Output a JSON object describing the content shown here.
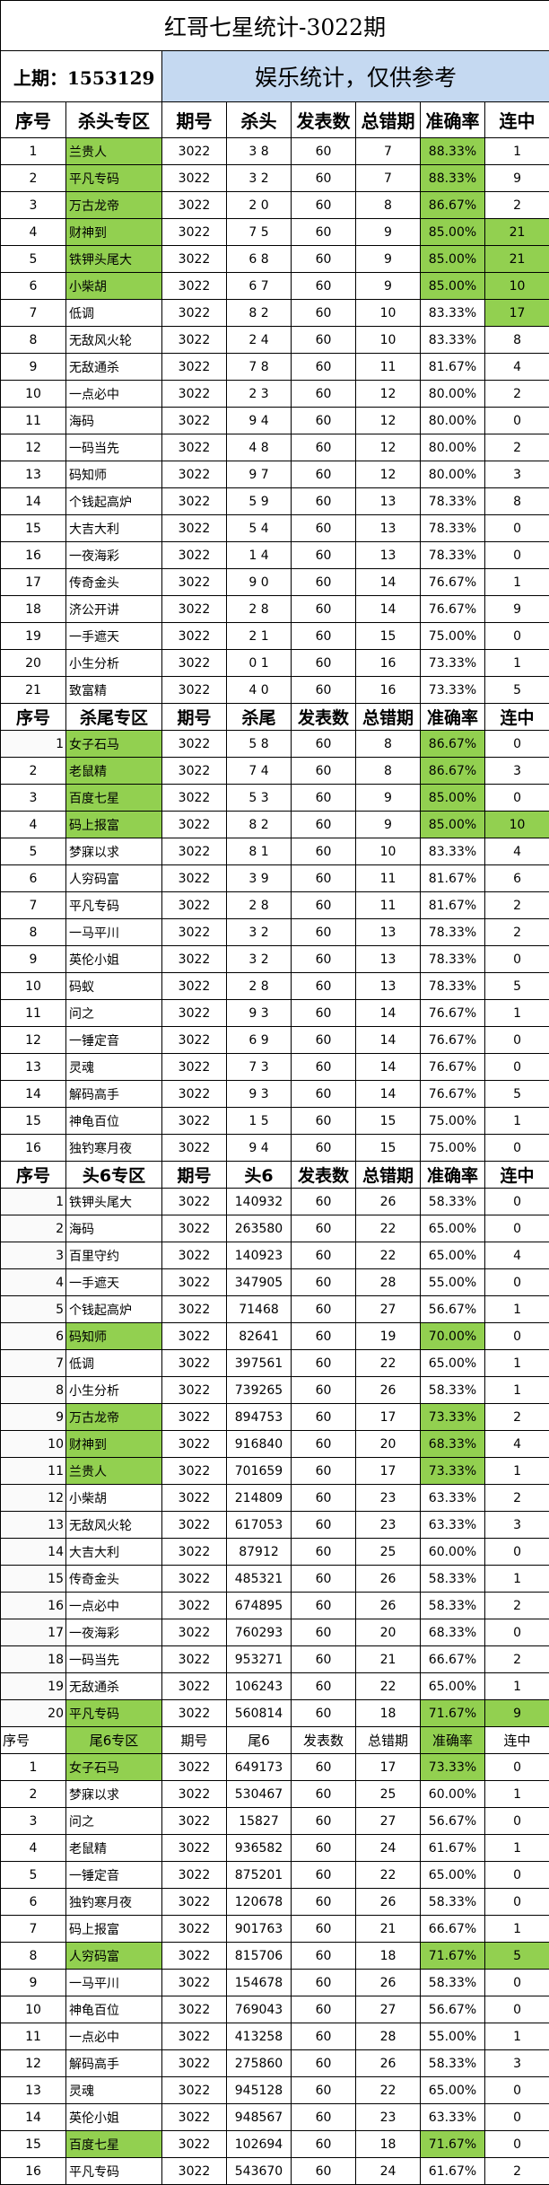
{
  "title": "红哥七星统计-3022期",
  "last_draw": "上期：1553129",
  "note": "娱乐统计，仅供参考",
  "colors": {
    "highlight": "#92d050",
    "note_bg": "#c5d9f1"
  },
  "sections": [
    {
      "headers": [
        "序号",
        "杀头专区",
        "期号",
        "杀头",
        "发表数",
        "总错期",
        "准确率",
        "连中"
      ],
      "rows": [
        [
          "1",
          "兰贵人",
          "3022",
          "3 8",
          "60",
          "7",
          "88.33%",
          "1",
          "nr"
        ],
        [
          "2",
          "平凡专码",
          "3022",
          "3 2",
          "60",
          "7",
          "88.33%",
          "9",
          "nr"
        ],
        [
          "3",
          "万古龙帝",
          "3022",
          "2 0",
          "60",
          "8",
          "86.67%",
          "2",
          "nr"
        ],
        [
          "4",
          "财神到",
          "3022",
          "7 5",
          "60",
          "9",
          "85.00%",
          "21",
          "nrs"
        ],
        [
          "5",
          "铁钾头尾大",
          "3022",
          "6 8",
          "60",
          "9",
          "85.00%",
          "21",
          "nrs"
        ],
        [
          "6",
          "小柴胡",
          "3022",
          "6 7",
          "60",
          "9",
          "85.00%",
          "10",
          "nrs"
        ],
        [
          "7",
          "低调",
          "3022",
          "8 2",
          "60",
          "10",
          "83.33%",
          "17",
          "s"
        ],
        [
          "8",
          "无敌风火轮",
          "3022",
          "2 4",
          "60",
          "10",
          "83.33%",
          "8",
          ""
        ],
        [
          "9",
          "无敌通杀",
          "3022",
          "7 8",
          "60",
          "11",
          "81.67%",
          "4",
          ""
        ],
        [
          "10",
          "一点必中",
          "3022",
          "2 3",
          "60",
          "12",
          "80.00%",
          "2",
          ""
        ],
        [
          "11",
          "海码",
          "3022",
          "9 4",
          "60",
          "12",
          "80.00%",
          "0",
          ""
        ],
        [
          "12",
          "一码当先",
          "3022",
          "4 8",
          "60",
          "12",
          "80.00%",
          "2",
          ""
        ],
        [
          "13",
          "码知师",
          "3022",
          "9 7",
          "60",
          "12",
          "80.00%",
          "3",
          ""
        ],
        [
          "14",
          "个钱起高炉",
          "3022",
          "5 9",
          "60",
          "13",
          "78.33%",
          "8",
          ""
        ],
        [
          "15",
          "大吉大利",
          "3022",
          "5 4",
          "60",
          "13",
          "78.33%",
          "0",
          ""
        ],
        [
          "16",
          "一夜海彩",
          "3022",
          "1 4",
          "60",
          "13",
          "78.33%",
          "0",
          ""
        ],
        [
          "17",
          "传奇金头",
          "3022",
          "9 0",
          "60",
          "14",
          "76.67%",
          "1",
          ""
        ],
        [
          "18",
          "济公开讲",
          "3022",
          "2 8",
          "60",
          "14",
          "76.67%",
          "9",
          ""
        ],
        [
          "19",
          "一手遮天",
          "3022",
          "2 1",
          "60",
          "15",
          "75.00%",
          "0",
          ""
        ],
        [
          "20",
          "小生分析",
          "3022",
          "0 1",
          "60",
          "16",
          "73.33%",
          "1",
          ""
        ],
        [
          "21",
          "致富精",
          "3022",
          "4 0",
          "60",
          "16",
          "73.33%",
          "5",
          ""
        ]
      ]
    },
    {
      "headers": [
        "序号",
        "杀尾专区",
        "期号",
        "杀尾",
        "发表数",
        "总错期",
        "准确率",
        "连中"
      ],
      "rows": [
        [
          "1",
          "女子石马",
          "3022",
          "5 8",
          "60",
          "8",
          "86.67%",
          "0",
          "nrR"
        ],
        [
          "2",
          "老鼠精",
          "3022",
          "7 4",
          "60",
          "8",
          "86.67%",
          "3",
          "nr"
        ],
        [
          "3",
          "百度七星",
          "3022",
          "5 3",
          "60",
          "9",
          "85.00%",
          "0",
          "nr"
        ],
        [
          "4",
          "码上报富",
          "3022",
          "8 2",
          "60",
          "9",
          "85.00%",
          "10",
          "nrs"
        ],
        [
          "5",
          "梦寐以求",
          "3022",
          "8 1",
          "60",
          "10",
          "83.33%",
          "4",
          ""
        ],
        [
          "6",
          "人穷码富",
          "3022",
          "3 9",
          "60",
          "11",
          "81.67%",
          "6",
          ""
        ],
        [
          "7",
          "平凡专码",
          "3022",
          "2 8",
          "60",
          "11",
          "81.67%",
          "2",
          ""
        ],
        [
          "8",
          "一马平川",
          "3022",
          "3 2",
          "60",
          "13",
          "78.33%",
          "2",
          ""
        ],
        [
          "9",
          "英伦小姐",
          "3022",
          "3 2",
          "60",
          "13",
          "78.33%",
          "0",
          ""
        ],
        [
          "10",
          "码蚁",
          "3022",
          "2 8",
          "60",
          "13",
          "78.33%",
          "5",
          ""
        ],
        [
          "11",
          "问之",
          "3022",
          "9 3",
          "60",
          "14",
          "76.67%",
          "1",
          ""
        ],
        [
          "12",
          "一锤定音",
          "3022",
          "6 9",
          "60",
          "14",
          "76.67%",
          "0",
          ""
        ],
        [
          "13",
          "灵魂",
          "3022",
          "7 3",
          "60",
          "14",
          "76.67%",
          "0",
          ""
        ],
        [
          "14",
          "解码高手",
          "3022",
          "9 3",
          "60",
          "14",
          "76.67%",
          "5",
          ""
        ],
        [
          "15",
          "神龟百位",
          "3022",
          "1 5",
          "60",
          "15",
          "75.00%",
          "1",
          ""
        ],
        [
          "16",
          "独钓寒月夜",
          "3022",
          "9 4",
          "60",
          "15",
          "75.00%",
          "0",
          ""
        ]
      ]
    },
    {
      "headers": [
        "序号",
        "头6专区",
        "期号",
        "头6",
        "发表数",
        "总错期",
        "准确率",
        "连中"
      ],
      "rows": [
        [
          "1",
          "铁钾头尾大",
          "3022",
          "140932",
          "60",
          "26",
          "58.33%",
          "0",
          "R"
        ],
        [
          "2",
          "海码",
          "3022",
          "263580",
          "60",
          "22",
          "65.00%",
          "0",
          "R"
        ],
        [
          "3",
          "百里守约",
          "3022",
          "140923",
          "60",
          "22",
          "65.00%",
          "4",
          "R"
        ],
        [
          "4",
          "一手遮天",
          "3022",
          "347905",
          "60",
          "28",
          "55.00%",
          "0",
          "R"
        ],
        [
          "5",
          "个钱起高炉",
          "3022",
          "71468",
          "60",
          "27",
          "56.67%",
          "1",
          "R"
        ],
        [
          "6",
          "码知师",
          "3022",
          "82641",
          "60",
          "19",
          "70.00%",
          "0",
          "nrR"
        ],
        [
          "7",
          "低调",
          "3022",
          "397561",
          "60",
          "22",
          "65.00%",
          "1",
          "R"
        ],
        [
          "8",
          "小生分析",
          "3022",
          "739265",
          "60",
          "26",
          "58.33%",
          "1",
          "R"
        ],
        [
          "9",
          "万古龙帝",
          "3022",
          "894753",
          "60",
          "17",
          "73.33%",
          "2",
          "nrR"
        ],
        [
          "10",
          "财神到",
          "3022",
          "916840",
          "60",
          "20",
          "68.33%",
          "4",
          "nrR"
        ],
        [
          "11",
          "兰贵人",
          "3022",
          "701659",
          "60",
          "17",
          "73.33%",
          "1",
          "nrR"
        ],
        [
          "12",
          "小柴胡",
          "3022",
          "214809",
          "60",
          "23",
          "63.33%",
          "2",
          "R"
        ],
        [
          "13",
          "无敌风火轮",
          "3022",
          "617053",
          "60",
          "23",
          "63.33%",
          "3",
          "R"
        ],
        [
          "14",
          "大吉大利",
          "3022",
          "87912",
          "60",
          "25",
          "60.00%",
          "0",
          "R"
        ],
        [
          "15",
          "传奇金头",
          "3022",
          "485321",
          "60",
          "26",
          "58.33%",
          "1",
          "R"
        ],
        [
          "16",
          "一点必中",
          "3022",
          "674895",
          "60",
          "26",
          "58.33%",
          "2",
          "R"
        ],
        [
          "17",
          "一夜海彩",
          "3022",
          "760293",
          "60",
          "20",
          "68.33%",
          "0",
          "R"
        ],
        [
          "18",
          "一码当先",
          "3022",
          "953271",
          "60",
          "21",
          "66.67%",
          "2",
          "R"
        ],
        [
          "19",
          "无敌通杀",
          "3022",
          "106243",
          "60",
          "22",
          "65.00%",
          "1",
          "R"
        ],
        [
          "20",
          "平凡专码",
          "3022",
          "560814",
          "60",
          "18",
          "71.67%",
          "9",
          "nrsR"
        ]
      ]
    },
    {
      "headers": [
        "序号",
        "尾6专区",
        "期号",
        "尾6",
        "发表数",
        "总错期",
        "准确率",
        "连中"
      ],
      "header_plain": true,
      "rows": [
        [
          "1",
          "女子石马",
          "3022",
          "649173",
          "60",
          "17",
          "73.33%",
          "0",
          "nr"
        ],
        [
          "2",
          "梦寐以求",
          "3022",
          "530467",
          "60",
          "25",
          "60.00%",
          "1",
          ""
        ],
        [
          "3",
          "问之",
          "3022",
          "15827",
          "60",
          "27",
          "56.67%",
          "0",
          ""
        ],
        [
          "4",
          "老鼠精",
          "3022",
          "936582",
          "60",
          "24",
          "61.67%",
          "1",
          ""
        ],
        [
          "5",
          "一锤定音",
          "3022",
          "875201",
          "60",
          "22",
          "65.00%",
          "0",
          ""
        ],
        [
          "6",
          "独钓寒月夜",
          "3022",
          "120678",
          "60",
          "26",
          "58.33%",
          "0",
          ""
        ],
        [
          "7",
          "码上报富",
          "3022",
          "901763",
          "60",
          "21",
          "66.67%",
          "1",
          ""
        ],
        [
          "8",
          "人穷码富",
          "3022",
          "815706",
          "60",
          "18",
          "71.67%",
          "5",
          "nrs"
        ],
        [
          "9",
          "一马平川",
          "3022",
          "154678",
          "60",
          "26",
          "58.33%",
          "0",
          ""
        ],
        [
          "10",
          "神龟百位",
          "3022",
          "769043",
          "60",
          "27",
          "56.67%",
          "0",
          ""
        ],
        [
          "11",
          "一点必中",
          "3022",
          "413258",
          "60",
          "28",
          "55.00%",
          "1",
          ""
        ],
        [
          "12",
          "解码高手",
          "3022",
          "275860",
          "60",
          "26",
          "58.33%",
          "3",
          ""
        ],
        [
          "13",
          "灵魂",
          "3022",
          "945128",
          "60",
          "22",
          "65.00%",
          "0",
          ""
        ],
        [
          "14",
          "英伦小姐",
          "3022",
          "948567",
          "60",
          "23",
          "63.33%",
          "0",
          ""
        ],
        [
          "15",
          "百度七星",
          "3022",
          "102694",
          "60",
          "18",
          "71.67%",
          "0",
          "nr"
        ],
        [
          "16",
          "平凡专码",
          "3022",
          "543670",
          "60",
          "24",
          "61.67%",
          "2",
          ""
        ]
      ]
    }
  ]
}
